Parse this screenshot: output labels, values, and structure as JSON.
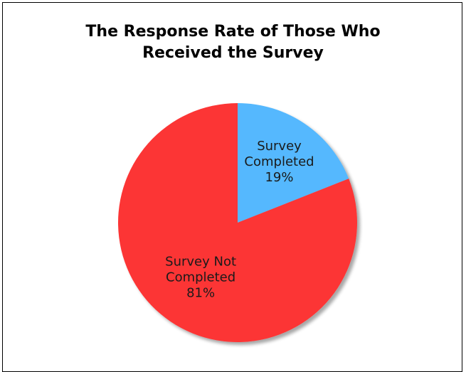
{
  "chart_data": {
    "type": "pie",
    "title_lines": [
      "The Response Rate of Those Who",
      "Received the Survey"
    ],
    "slices": [
      {
        "label_lines": [
          "Survey",
          "Completed",
          "19%"
        ],
        "value": 19,
        "color": "#55b8fe"
      },
      {
        "label_lines": [
          "Survey Not",
          "Completed",
          "81%"
        ],
        "value": 81,
        "color": "#fc3536"
      }
    ],
    "legend": "none"
  }
}
